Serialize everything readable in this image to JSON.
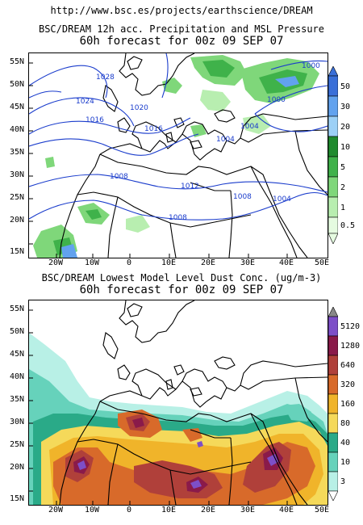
{
  "header": {
    "url": "http://www.bsc.es/projects/earthscience/DREAM"
  },
  "panel1": {
    "title": "BSC/DREAM 12h acc. Precipitation and MSL Pressure",
    "subtitle": "60h forecast for 00z 09 SEP 07",
    "colorbar": [
      {
        "label": "50",
        "color": "#3a6fd8"
      },
      {
        "label": "30",
        "color": "#62a2ee"
      },
      {
        "label": "20",
        "color": "#9cd0f6"
      },
      {
        "label": "10",
        "color": "#1f8b2e"
      },
      {
        "label": "5",
        "color": "#3fb24a"
      },
      {
        "label": "2",
        "color": "#7fd77a"
      },
      {
        "label": "1",
        "color": "#b8eeb0"
      },
      {
        "label": "0.5",
        "color": "#e5fbe0"
      }
    ],
    "isobar_labels": [
      "1028",
      "1024",
      "1020",
      "1016",
      "1016",
      "1008",
      "1012",
      "1008",
      "1008",
      "1004",
      "1004",
      "1000",
      "1000",
      "1004"
    ]
  },
  "panel2": {
    "title": "BSC/DREAM Lowest Model Level Dust Conc. (ug/m-3)",
    "subtitle": "60h forecast for 00z 09 SEP 07",
    "colorbar": [
      {
        "label": "5120",
        "color": "#7d4fc8"
      },
      {
        "label": "1280",
        "color": "#8a1a4a"
      },
      {
        "label": "640",
        "color": "#b0403a"
      },
      {
        "label": "320",
        "color": "#d86a2a"
      },
      {
        "label": "160",
        "color": "#f0b42a"
      },
      {
        "label": "80",
        "color": "#f5d95a"
      },
      {
        "label": "40",
        "color": "#2aaa88"
      },
      {
        "label": "10",
        "color": "#66d2bb"
      },
      {
        "label": "3",
        "color": "#b8f0e6"
      }
    ]
  },
  "axes": {
    "lat_labels": [
      "55N",
      "50N",
      "45N",
      "40N",
      "35N",
      "30N",
      "25N",
      "20N",
      "15N"
    ],
    "lon_labels": [
      "20W",
      "10W",
      "0",
      "10E",
      "20E",
      "30E",
      "40E",
      "50E"
    ]
  },
  "colors": {
    "isobar": "#1a3ccc",
    "coast": "#000000",
    "land": "#ffffff"
  }
}
